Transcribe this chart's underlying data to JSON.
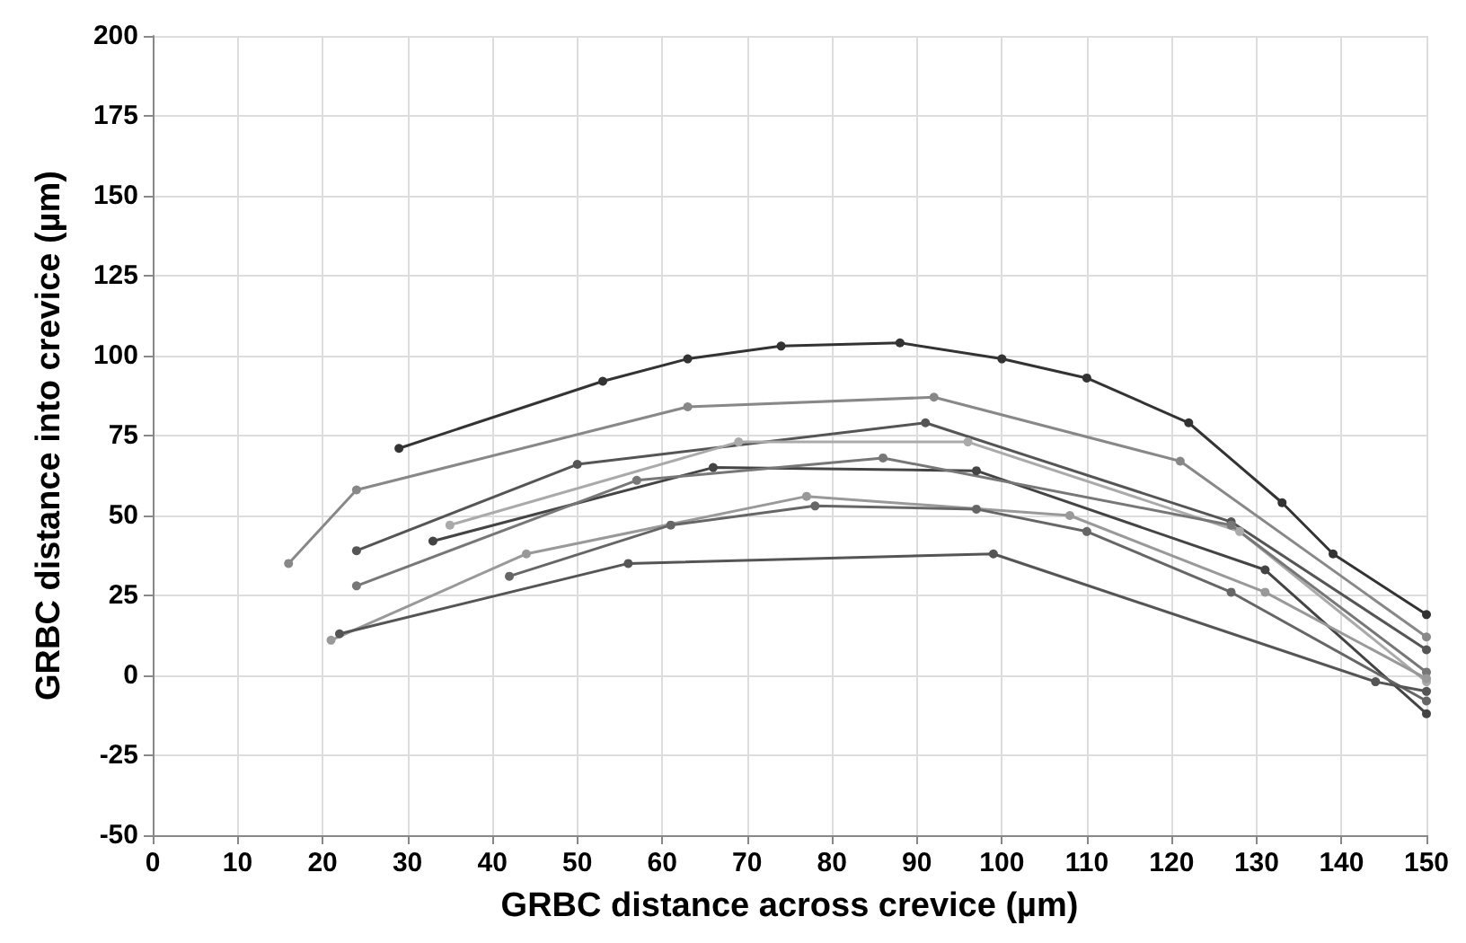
{
  "chart_data": {
    "type": "line",
    "xlabel": "GRBC distance across crevice (µm)",
    "ylabel": "GRBC distance into crevice (µm)",
    "xlim": [
      0,
      150
    ],
    "xticks": [
      0,
      10,
      20,
      30,
      40,
      50,
      60,
      70,
      80,
      90,
      100,
      110,
      120,
      130,
      140,
      150
    ],
    "ylim": [
      -50,
      200
    ],
    "yticks": [
      -50,
      -25,
      0,
      25,
      50,
      75,
      100,
      125,
      150,
      175,
      200
    ],
    "grid": true,
    "marker": "circle",
    "line_style": "solid",
    "series": [
      {
        "color": "#333333",
        "x": [
          29,
          53,
          63,
          74,
          88,
          100,
          110,
          122,
          133,
          139,
          150
        ],
        "values": [
          71,
          92,
          99,
          103,
          104,
          99,
          93,
          79,
          54,
          38,
          19
        ]
      },
      {
        "color": "#888888",
        "x": [
          16,
          24,
          63,
          92,
          121,
          150
        ],
        "values": [
          35,
          58,
          84,
          87,
          67,
          12
        ]
      },
      {
        "color": "#555555",
        "x": [
          24,
          50,
          91,
          127,
          150
        ],
        "values": [
          39,
          66,
          79,
          48,
          8
        ]
      },
      {
        "color": "#aaaaaa",
        "x": [
          35,
          69,
          96,
          128,
          150
        ],
        "values": [
          47,
          73,
          73,
          45,
          -2
        ]
      },
      {
        "color": "#444444",
        "x": [
          33,
          66,
          97,
          131,
          150
        ],
        "values": [
          42,
          65,
          64,
          33,
          -12
        ]
      },
      {
        "color": "#777777",
        "x": [
          24,
          57,
          86,
          127,
          150
        ],
        "values": [
          28,
          61,
          68,
          47,
          1
        ]
      },
      {
        "color": "#999999",
        "x": [
          21,
          44,
          77,
          108,
          131,
          150
        ],
        "values": [
          11,
          38,
          56,
          50,
          26,
          -1
        ]
      },
      {
        "color": "#666666",
        "x": [
          42,
          61,
          78,
          97,
          110,
          127,
          150
        ],
        "values": [
          31,
          47,
          53,
          52,
          45,
          26,
          -8
        ]
      },
      {
        "color": "#555555",
        "x": [
          22,
          56,
          99,
          144,
          150
        ],
        "values": [
          13,
          35,
          38,
          -2,
          -5
        ]
      }
    ]
  }
}
